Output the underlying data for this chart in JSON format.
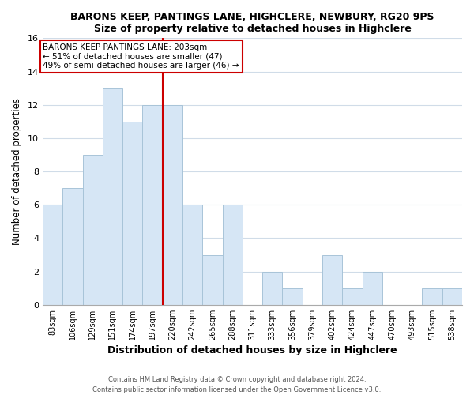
{
  "title": "BARONS KEEP, PANTINGS LANE, HIGHCLERE, NEWBURY, RG20 9PS",
  "subtitle": "Size of property relative to detached houses in Highclere",
  "xlabel": "Distribution of detached houses by size in Highclere",
  "ylabel": "Number of detached properties",
  "bar_labels": [
    "83sqm",
    "106sqm",
    "129sqm",
    "151sqm",
    "174sqm",
    "197sqm",
    "220sqm",
    "242sqm",
    "265sqm",
    "288sqm",
    "311sqm",
    "333sqm",
    "356sqm",
    "379sqm",
    "402sqm",
    "424sqm",
    "447sqm",
    "470sqm",
    "493sqm",
    "515sqm",
    "538sqm"
  ],
  "bar_values": [
    6,
    7,
    9,
    13,
    11,
    12,
    12,
    6,
    3,
    6,
    0,
    2,
    1,
    0,
    3,
    1,
    2,
    0,
    0,
    1,
    1
  ],
  "bar_color": "#d6e6f5",
  "bar_edge_color": "#a8c4d8",
  "vline_x": 5.5,
  "vline_color": "#cc0000",
  "annotation_title": "BARONS KEEP PANTINGS LANE: 203sqm",
  "annotation_line1": "← 51% of detached houses are smaller (47)",
  "annotation_line2": "49% of semi-detached houses are larger (46) →",
  "annotation_box_color": "#ffffff",
  "annotation_box_edge": "#cc0000",
  "ylim": [
    0,
    16
  ],
  "yticks": [
    0,
    2,
    4,
    6,
    8,
    10,
    12,
    14,
    16
  ],
  "footer1": "Contains HM Land Registry data © Crown copyright and database right 2024.",
  "footer2": "Contains public sector information licensed under the Open Government Licence v3.0.",
  "background_color": "#ffffff",
  "plot_background": "#ffffff",
  "grid_color": "#d0dce8"
}
